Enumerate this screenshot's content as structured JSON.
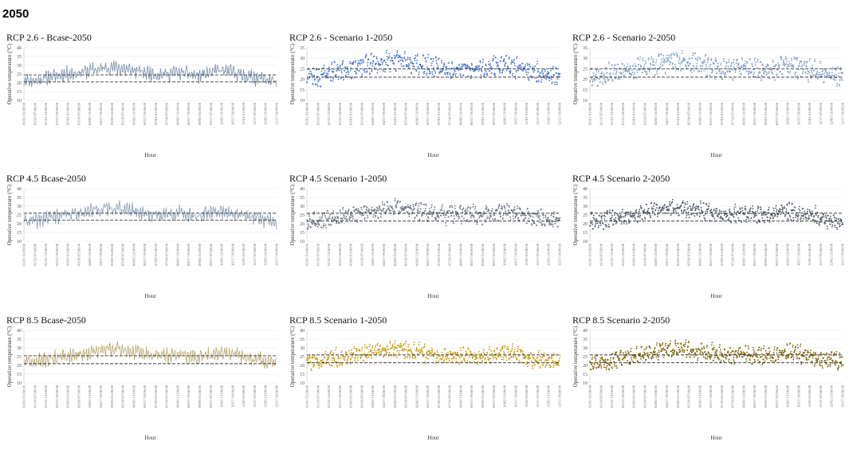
{
  "page": {
    "heading": "2050"
  },
  "chart_data": [
    {
      "type": "line",
      "title": "RCP 2.6 - Bcase-2050",
      "style": "line",
      "color": "#7b8fa8",
      "seed": 11,
      "offset": 0.0,
      "ylabel": "Operative temperature (°C)",
      "xlabel": "Hour",
      "ylim": [
        10,
        40
      ],
      "yticks": [
        10,
        15,
        20,
        25,
        30,
        35,
        40
      ],
      "grid": true,
      "threshold_upper": 24.5,
      "threshold_lower": 20.5,
      "x": [
        "01/01 01:00:00",
        "01/16 07:00:00",
        "01/31 13:00:00",
        "02/15 19:00:00",
        "03/03 01:00:00",
        "03/18 07:00:00",
        "04/02 13:00:00",
        "04/17 19:00:00",
        "05/03 01:00:00",
        "05/18 07:00:00",
        "06/02 13:00:00",
        "06/17 19:00:00",
        "07/03 01:00:00",
        "07/18 07:00:00",
        "08/02 13:00:00",
        "08/17 19:00:00",
        "09/02 01:00:00",
        "09/17 07:00:00",
        "10/02 13:00:00",
        "10/17 19:00:00",
        "11/02 01:00:00",
        "11/17 07:00:00",
        "12/02 13:00:00",
        "12/17 19:00:00"
      ],
      "series": [
        {
          "values": [
            22,
            21,
            23,
            24,
            25,
            26,
            27,
            28,
            29,
            28,
            27,
            26,
            25,
            25,
            26,
            25,
            24,
            26,
            27,
            26,
            24,
            23,
            22,
            21
          ]
        }
      ]
    },
    {
      "type": "scatter",
      "title": "RCP 2.6 - Scenario 1-2050",
      "style": "dots",
      "color": "#4472c4",
      "seed": 23,
      "offset": 0.2,
      "ylabel": "Operative temperature (°C)",
      "xlabel": "Hour",
      "ylim": [
        10,
        35
      ],
      "yticks": [
        10,
        15,
        20,
        25,
        30,
        35
      ],
      "grid": true,
      "threshold_upper": 25,
      "threshold_lower": 21,
      "x": [
        "01/01 01:00:00",
        "01/16 07:00:00",
        "01/31 13:00:00",
        "02/15 19:00:00",
        "03/03 01:00:00",
        "03/18 07:00:00",
        "04/02 13:00:00",
        "04/17 19:00:00",
        "05/03 01:00:00",
        "05/18 07:00:00",
        "06/02 13:00:00",
        "06/17 19:00:00",
        "07/03 01:00:00",
        "07/18 07:00:00",
        "08/02 13:00:00",
        "08/17 19:00:00",
        "09/02 01:00:00",
        "09/17 07:00:00",
        "10/02 13:00:00",
        "10/17 19:00:00",
        "11/02 01:00:00",
        "11/17 07:00:00",
        "12/02 13:00:00",
        "12/17 19:00:00"
      ],
      "series": [
        {
          "values": [
            22,
            21,
            23,
            24,
            25,
            26,
            27,
            28,
            29,
            28,
            27,
            26,
            25,
            25,
            26,
            25,
            24,
            26,
            27,
            26,
            24,
            23,
            22,
            21
          ]
        }
      ]
    },
    {
      "type": "scatter",
      "title": "RCP 2.6 - Scenario 2-2050",
      "style": "dots",
      "color": "#7f9cc8",
      "seed": 37,
      "offset": 0.0,
      "ylabel": "Operative temperature (°C)",
      "xlabel": "Hour",
      "ylim": [
        10,
        35
      ],
      "yticks": [
        10,
        15,
        20,
        25,
        30,
        35
      ],
      "grid": true,
      "threshold_upper": 25,
      "threshold_lower": 21,
      "x": [
        "01/01 01:00:00",
        "01/16 07:00:00",
        "01/31 13:00:00",
        "02/15 19:00:00",
        "03/03 01:00:00",
        "03/18 07:00:00",
        "04/02 13:00:00",
        "04/17 19:00:00",
        "05/03 01:00:00",
        "05/18 07:00:00",
        "06/02 13:00:00",
        "06/17 19:00:00",
        "07/03 01:00:00",
        "07/18 07:00:00",
        "08/02 13:00:00",
        "08/17 19:00:00",
        "09/02 01:00:00",
        "09/17 07:00:00",
        "10/02 13:00:00",
        "10/17 19:00:00",
        "11/02 01:00:00",
        "11/17 07:00:00",
        "12/02 13:00:00",
        "12/17 19:00:00"
      ],
      "series": [
        {
          "values": [
            22,
            21,
            23,
            24,
            25,
            26,
            27,
            28,
            29,
            28,
            27,
            26,
            25,
            25,
            26,
            25,
            24,
            26,
            27,
            26,
            24,
            23,
            22,
            21
          ]
        }
      ]
    },
    {
      "type": "line",
      "title": "RCP 4.5 Bcase-2050",
      "style": "line",
      "color": "#8a9cb2",
      "seed": 41,
      "offset": 0.3,
      "ylabel": "Operative temperature (°C)",
      "xlabel": "Hour",
      "ylim": [
        10,
        40
      ],
      "yticks": [
        10,
        15,
        20,
        25,
        30,
        35,
        40
      ],
      "grid": true,
      "threshold_upper": 26,
      "threshold_lower": 22,
      "x": [
        "01/01 01:00:00",
        "01/16 07:00:00",
        "01/31 13:00:00",
        "02/15 19:00:00",
        "03/03 01:00:00",
        "03/18 07:00:00",
        "04/02 13:00:00",
        "04/17 19:00:00",
        "05/03 01:00:00",
        "05/18 07:00:00",
        "06/02 13:00:00",
        "06/17 19:00:00",
        "07/03 01:00:00",
        "07/18 07:00:00",
        "08/02 13:00:00",
        "08/17 19:00:00",
        "09/02 01:00:00",
        "09/17 07:00:00",
        "10/02 13:00:00",
        "10/17 19:00:00",
        "11/02 01:00:00",
        "11/17 07:00:00",
        "12/02 13:00:00",
        "12/17 19:00:00"
      ],
      "series": [
        {
          "values": [
            22,
            21,
            23,
            24,
            25,
            26,
            27,
            28,
            29,
            28,
            27,
            26,
            25,
            25,
            26,
            25,
            24,
            26,
            27,
            26,
            24,
            23,
            22,
            21
          ]
        }
      ]
    },
    {
      "type": "scatter",
      "title": "RCP 4.5 Scenario 1-2050",
      "style": "dots",
      "color": "#6d7584",
      "seed": 53,
      "offset": 0.3,
      "ylabel": "Operative temperature (°C)",
      "xlabel": "Hour",
      "ylim": [
        10,
        40
      ],
      "yticks": [
        10,
        15,
        20,
        25,
        30,
        35,
        40
      ],
      "grid": true,
      "threshold_upper": 26,
      "threshold_lower": 21.5,
      "x": [
        "01/01 01:00:00",
        "01/16 07:00:00",
        "01/31 13:00:00",
        "02/15 19:00:00",
        "03/03 01:00:00",
        "03/18 07:00:00",
        "04/02 13:00:00",
        "04/17 19:00:00",
        "05/03 01:00:00",
        "05/18 07:00:00",
        "06/02 13:00:00",
        "06/17 19:00:00",
        "07/03 01:00:00",
        "07/18 07:00:00",
        "08/02 13:00:00",
        "08/17 19:00:00",
        "09/02 01:00:00",
        "09/17 07:00:00",
        "10/02 13:00:00",
        "10/17 19:00:00",
        "11/02 01:00:00",
        "11/17 07:00:00",
        "12/02 13:00:00",
        "12/17 19:00:00"
      ],
      "series": [
        {
          "values": [
            22,
            21,
            23,
            24,
            25,
            26,
            27,
            28,
            29,
            28,
            27,
            26,
            25,
            25,
            26,
            25,
            24,
            26,
            27,
            26,
            24,
            23,
            22,
            21
          ]
        }
      ]
    },
    {
      "type": "scatter",
      "title": "RCP 4.5 Scenario 2-2050",
      "style": "dots",
      "color": "#4e5868",
      "seed": 67,
      "offset": 0.3,
      "ylabel": "Operative temperature (°C)",
      "xlabel": "Hour",
      "ylim": [
        10,
        40
      ],
      "yticks": [
        10,
        15,
        20,
        25,
        30,
        35,
        40
      ],
      "grid": true,
      "threshold_upper": 26,
      "threshold_lower": 21.5,
      "x": [
        "01/01 01:00:00",
        "01/16 07:00:00",
        "01/31 13:00:00",
        "02/15 19:00:00",
        "03/03 01:00:00",
        "03/18 07:00:00",
        "04/02 13:00:00",
        "04/17 19:00:00",
        "05/03 01:00:00",
        "05/18 07:00:00",
        "06/02 13:00:00",
        "06/17 19:00:00",
        "07/03 01:00:00",
        "07/18 07:00:00",
        "08/02 13:00:00",
        "08/17 19:00:00",
        "09/02 01:00:00",
        "09/17 07:00:00",
        "10/02 13:00:00",
        "10/17 19:00:00",
        "11/02 01:00:00",
        "11/17 07:00:00",
        "12/02 13:00:00",
        "12/17 19:00:00"
      ],
      "series": [
        {
          "values": [
            22,
            21,
            23,
            24,
            25,
            26,
            27,
            28,
            29,
            28,
            27,
            26,
            25,
            25,
            26,
            25,
            24,
            26,
            27,
            26,
            24,
            23,
            22,
            21
          ]
        }
      ]
    },
    {
      "type": "line",
      "title": "RCP 8.5 Bcase-2050",
      "style": "line",
      "color": "#b8a874",
      "seed": 71,
      "offset": 0.6,
      "ylabel": "Operative temperature (°C)",
      "xlabel": "Hour",
      "ylim": [
        10,
        40
      ],
      "yticks": [
        10,
        15,
        20,
        25,
        30,
        35,
        40
      ],
      "grid": true,
      "threshold_upper": 25.5,
      "threshold_lower": 21,
      "x": [
        "01/01 01:00:00",
        "01/16 07:00:00",
        "01/31 13:00:00",
        "02/15 19:00:00",
        "03/03 01:00:00",
        "03/18 07:00:00",
        "04/02 13:00:00",
        "04/17 19:00:00",
        "05/03 01:00:00",
        "05/18 07:00:00",
        "06/02 13:00:00",
        "06/17 19:00:00",
        "07/03 01:00:00",
        "07/18 07:00:00",
        "08/02 13:00:00",
        "08/17 19:00:00",
        "09/02 01:00:00",
        "09/17 07:00:00",
        "10/02 13:00:00",
        "10/17 19:00:00",
        "11/02 01:00:00",
        "11/17 07:00:00",
        "12/02 13:00:00",
        "12/17 19:00:00"
      ],
      "series": [
        {
          "values": [
            22,
            21,
            23,
            24,
            25,
            26,
            27,
            28,
            29,
            28,
            27,
            26,
            25,
            25,
            26,
            25,
            24,
            26,
            27,
            26,
            24,
            23,
            22,
            21
          ]
        }
      ]
    },
    {
      "type": "scatter",
      "title": "RCP 8.5 Scenario 1-2050",
      "style": "dots",
      "color": "#c99a0c",
      "seed": 83,
      "offset": 0.6,
      "ylabel": "Operative temperature (°C)",
      "xlabel": "Hour",
      "ylim": [
        10,
        40
      ],
      "yticks": [
        10,
        15,
        20,
        25,
        30,
        35,
        40
      ],
      "grid": true,
      "threshold_upper": 26,
      "threshold_lower": 21.5,
      "x": [
        "01/01 01:00:00",
        "01/16 07:00:00",
        "01/31 13:00:00",
        "02/15 19:00:00",
        "03/03 01:00:00",
        "03/18 07:00:00",
        "04/02 13:00:00",
        "04/17 19:00:00",
        "05/03 01:00:00",
        "05/18 07:00:00",
        "06/02 13:00:00",
        "06/17 19:00:00",
        "07/03 01:00:00",
        "07/18 07:00:00",
        "08/02 13:00:00",
        "08/17 19:00:00",
        "09/02 01:00:00",
        "09/17 07:00:00",
        "10/02 13:00:00",
        "10/17 19:00:00",
        "11/02 01:00:00",
        "11/17 07:00:00",
        "12/02 13:00:00",
        "12/17 19:00:00"
      ],
      "series": [
        {
          "values": [
            22,
            21,
            23,
            24,
            25,
            26,
            27,
            28,
            29,
            28,
            27,
            26,
            25,
            25,
            26,
            25,
            24,
            26,
            27,
            26,
            24,
            23,
            22,
            21
          ]
        }
      ]
    },
    {
      "type": "scatter",
      "title": "RCP 8.5 Scenario 2-2050",
      "style": "dots",
      "color": "#7d6000",
      "seed": 97,
      "offset": 0.6,
      "ylabel": "Operative temperature (°C)",
      "xlabel": "Hour",
      "ylim": [
        10,
        40
      ],
      "yticks": [
        10,
        15,
        20,
        25,
        30,
        35,
        40
      ],
      "grid": true,
      "threshold_upper": 26,
      "threshold_lower": 21.5,
      "x": [
        "01/01 01:00:00",
        "01/16 07:00:00",
        "01/31 13:00:00",
        "02/15 19:00:00",
        "03/03 01:00:00",
        "03/18 07:00:00",
        "04/02 13:00:00",
        "04/17 19:00:00",
        "05/03 01:00:00",
        "05/18 07:00:00",
        "06/02 13:00:00",
        "06/17 19:00:00",
        "07/03 01:00:00",
        "07/18 07:00:00",
        "08/02 13:00:00",
        "08/17 19:00:00",
        "09/02 01:00:00",
        "09/17 07:00:00",
        "10/02 13:00:00",
        "10/17 19:00:00",
        "11/02 01:00:00",
        "11/17 07:00:00",
        "12/02 13:00:00",
        "12/17 19:00:00"
      ],
      "series": [
        {
          "values": [
            22,
            21,
            23,
            24,
            25,
            26,
            27,
            28,
            29,
            28,
            27,
            26,
            25,
            25,
            26,
            25,
            24,
            26,
            27,
            26,
            24,
            23,
            22,
            21
          ]
        }
      ]
    }
  ]
}
